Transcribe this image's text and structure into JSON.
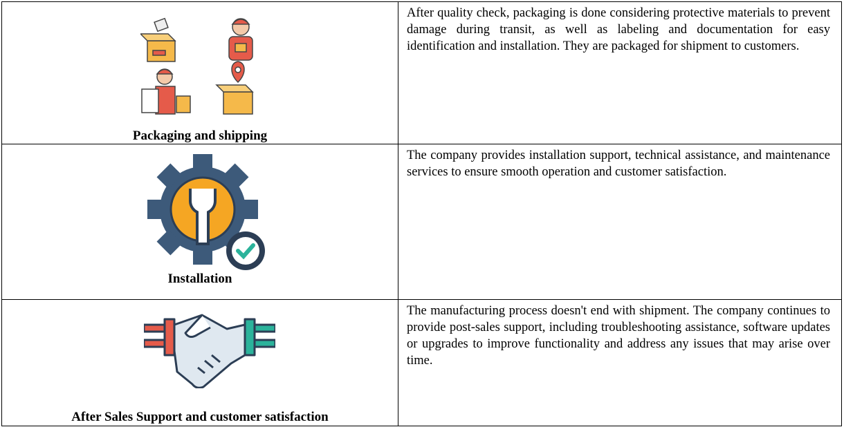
{
  "table": {
    "rows": [
      {
        "label": "Packaging and shipping",
        "description": "After quality check, packaging is done considering protective materials to prevent damage during transit, as well as labeling and documentation for easy identification and installation. They are packaged for shipment to customers."
      },
      {
        "label": "Installation",
        "description": "The company provides installation support, technical assistance, and maintenance services to ensure smooth operation and customer satisfaction."
      },
      {
        "label": "After Sales Support and customer satisfaction",
        "description": "The manufacturing process doesn't end with shipment. The company continues to provide post-sales support, including troubleshooting assistance, software updates or upgrades to improve functionality and address any issues that may arise over time."
      }
    ]
  }
}
